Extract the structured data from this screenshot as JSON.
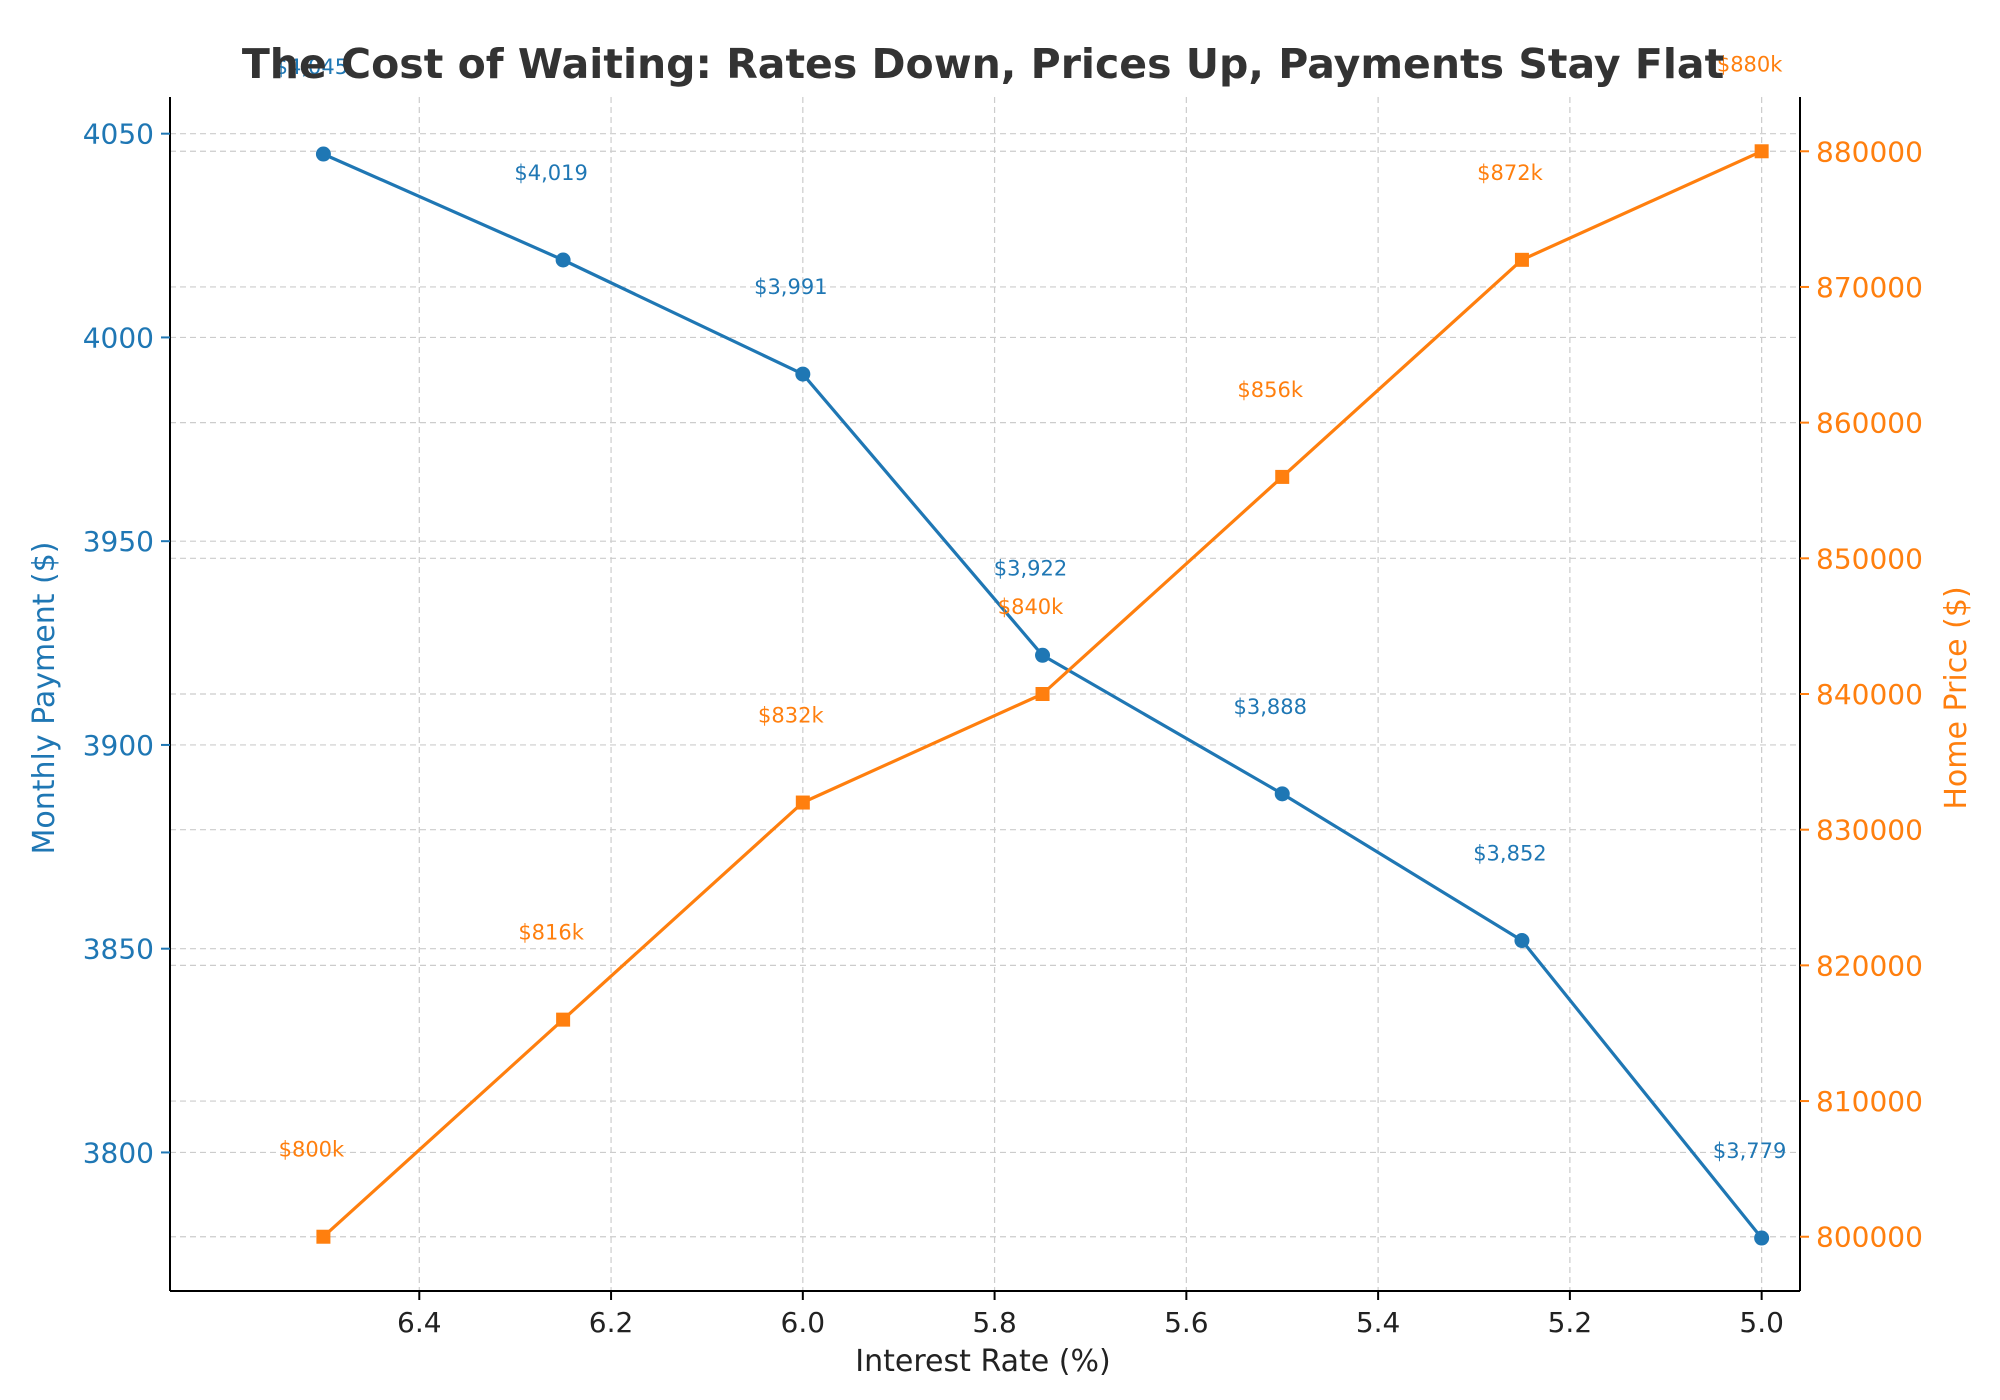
{
  "chart_data": {
    "type": "line",
    "title": "The Cost of Waiting: Rates Down, Prices Up, Payments Stay Flat",
    "xlabel": "Interest Rate (%)",
    "ylabel_left": "Monthly Payment ($)",
    "ylabel_right": "Home Price ($)",
    "x": [
      6.5,
      6.25,
      6.0,
      5.75,
      5.5,
      5.25,
      5.0
    ],
    "x_inverted": true,
    "xlim": [
      6.66,
      4.96
    ],
    "x_ticks": [
      6.4,
      6.2,
      6.0,
      5.8,
      5.6,
      5.4,
      5.2,
      5.0
    ],
    "x_tick_labels": [
      "6.4",
      "6.2",
      "6.0",
      "5.8",
      "5.6",
      "5.4",
      "5.2",
      "5.0"
    ],
    "ylim_left": [
      3766,
      4059
    ],
    "y_ticks_left": [
      3800,
      3850,
      3900,
      3950,
      4000,
      4050
    ],
    "y_tick_labels_left": [
      "3800",
      "3850",
      "3900",
      "3950",
      "4000",
      "4050"
    ],
    "ylim_right": [
      796000,
      884000
    ],
    "y_ticks_right": [
      800000,
      810000,
      820000,
      830000,
      840000,
      850000,
      860000,
      870000,
      880000
    ],
    "y_tick_labels_right": [
      "800000",
      "810000",
      "820000",
      "830000",
      "840000",
      "850000",
      "860000",
      "870000",
      "880000"
    ],
    "grid": true,
    "series": [
      {
        "name": "Monthly Payment ($)",
        "axis": "left",
        "color": "#1f77b4",
        "marker": "circle",
        "values": [
          4045,
          4019,
          3991,
          3922,
          3888,
          3852,
          3779
        ],
        "labels": [
          "$4,045",
          "$4,019",
          "$3,991",
          "$3,922",
          "$3,888",
          "$3,852",
          "$3,779"
        ]
      },
      {
        "name": "Home Price ($)",
        "axis": "right",
        "color": "#ff7f0e",
        "marker": "square",
        "values": [
          800000,
          816000,
          832000,
          840000,
          856000,
          872000,
          880000
        ],
        "labels": [
          "$800k",
          "$816k",
          "$832k",
          "$840k",
          "$856k",
          "$872k",
          "$880k"
        ]
      }
    ]
  }
}
